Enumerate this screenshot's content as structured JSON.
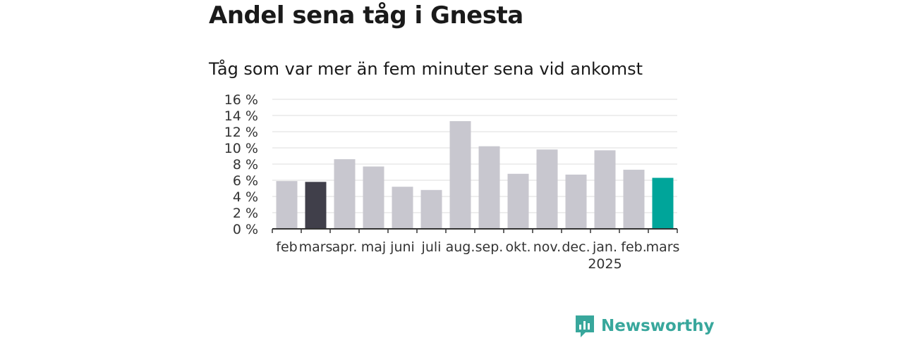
{
  "title": "Andel sena tåg i Gnesta",
  "subtitle": "Tåg som var mer än fem minuter sena vid ankomst",
  "brand": {
    "name": "Newsworthy",
    "icon": "newsworthy-logo-icon",
    "color": "#38a79c"
  },
  "chart_data": {
    "type": "bar",
    "categories": [
      "feb",
      "mars",
      "apr.",
      "maj",
      "juni",
      "juli",
      "aug.",
      "sep.",
      "okt.",
      "nov.",
      "dec.",
      "jan.",
      "feb.",
      "mars"
    ],
    "category_sublabels": [
      "",
      "",
      "",
      "",
      "",
      "",
      "",
      "",
      "",
      "",
      "",
      "2025",
      "",
      ""
    ],
    "values": [
      5.9,
      5.8,
      8.6,
      7.7,
      5.2,
      4.8,
      13.3,
      10.2,
      6.8,
      9.8,
      6.7,
      9.7,
      7.3,
      6.3
    ],
    "bar_colors": [
      "#c8c7cf",
      "#403f4a",
      "#c8c7cf",
      "#c8c7cf",
      "#c8c7cf",
      "#c8c7cf",
      "#c8c7cf",
      "#c8c7cf",
      "#c8c7cf",
      "#c8c7cf",
      "#c8c7cf",
      "#c8c7cf",
      "#c8c7cf",
      "#00a59a"
    ],
    "yticks": [
      0,
      2,
      4,
      6,
      8,
      10,
      12,
      14,
      16
    ],
    "ytick_labels": [
      "0 %",
      "2 %",
      "4 %",
      "6 %",
      "8 %",
      "10 %",
      "12 %",
      "14 %",
      "16 %"
    ],
    "ylim": [
      0,
      16
    ],
    "grid": true,
    "xlabel": "",
    "ylabel": ""
  }
}
